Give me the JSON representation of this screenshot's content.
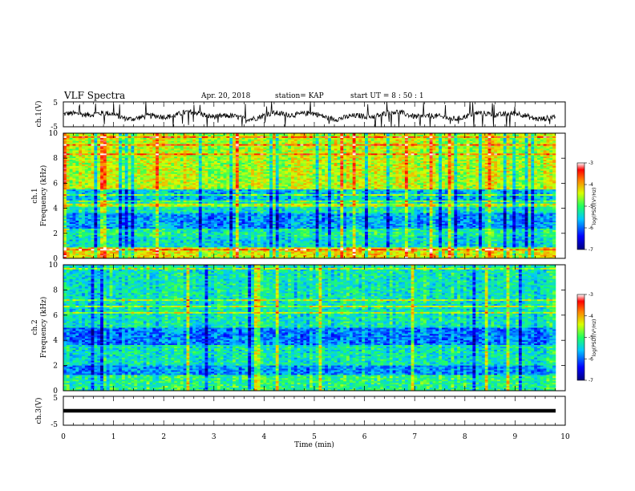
{
  "header": {
    "title": "VLF Spectra",
    "date": "Apr. 20, 2018",
    "station": "station= KAP",
    "start": "start  UT =   8  : 50 : 1"
  },
  "chart_data": [
    {
      "type": "line",
      "ylabel": "ch.1(V)",
      "ylim": [
        -5,
        5
      ],
      "yticks": [
        "5",
        "-5"
      ],
      "description_points_min": [
        0,
        10
      ]
    },
    {
      "type": "heatmap",
      "ylabel_line1": "ch.1",
      "ylabel_line2": "Frequency  (kHz)",
      "ylim": [
        0,
        10
      ],
      "yticks": [
        "10",
        "8",
        "6",
        "4",
        "2",
        "0"
      ],
      "colorbar": {
        "label": "log(PSD)(V²/Hz)",
        "range": [
          -7,
          -3
        ],
        "ticks": [
          "-3",
          "-4",
          "-5",
          "-6",
          "-7"
        ]
      }
    },
    {
      "type": "heatmap",
      "ylabel_line1": "ch.2",
      "ylabel_line2": "Frequency  (kHz)",
      "ylim": [
        0,
        10
      ],
      "yticks": [
        "10",
        "8",
        "6",
        "4",
        "2",
        "0"
      ],
      "colorbar": {
        "label": "log(PSD)(V²/Hz)",
        "range": [
          -7,
          -3
        ],
        "ticks": [
          "-3",
          "-4",
          "-5",
          "-6",
          "-7"
        ]
      }
    },
    {
      "type": "line",
      "ylabel": "ch.3(V)",
      "ylim": [
        -5,
        5
      ],
      "yticks": [
        "5",
        "-5"
      ],
      "constant_value": 0
    }
  ],
  "xaxis": {
    "label": "Time  (min)",
    "range": [
      0,
      10
    ],
    "ticks": [
      "0",
      "1",
      "2",
      "3",
      "4",
      "5",
      "6",
      "7",
      "8",
      "9",
      "10"
    ]
  }
}
